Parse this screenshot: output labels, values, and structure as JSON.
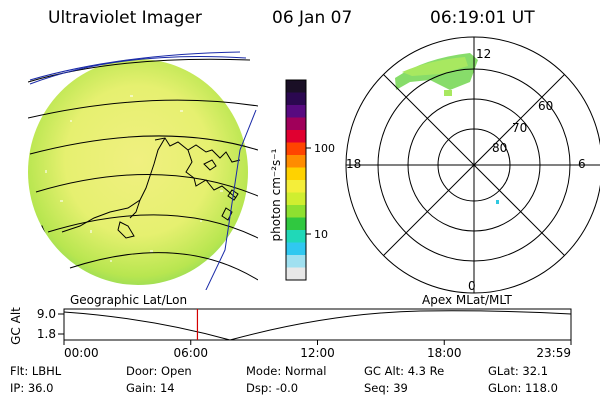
{
  "header": {
    "title": "Ultraviolet Imager",
    "date": "06 Jan 07",
    "time": "06:19:01 UT"
  },
  "colorbar": {
    "unit_label": "photon cm⁻²s⁻¹",
    "ticks": [
      "100",
      "10"
    ],
    "colors": [
      "#1a0f26",
      "#2b0850",
      "#580a80",
      "#a0005a",
      "#e00030",
      "#ff4400",
      "#ff8c00",
      "#ffd200",
      "#f4ee3a",
      "#d0ee30",
      "#8ee030",
      "#30c840",
      "#20d8b8",
      "#30c8f0",
      "#a0e0f0",
      "#e8e8e8"
    ]
  },
  "polar_plot": {
    "mlt_labels": {
      "top": "12",
      "left": "18",
      "right": "6",
      "bottom": "0"
    },
    "lat_labels": [
      "60",
      "70",
      "80"
    ]
  },
  "timeline": {
    "left_title": "Geographic Lat/Lon",
    "right_title": "Apex MLat/MLT",
    "y_axis_label": "GC Alt",
    "y_max": "9.0",
    "y_min": "1.8",
    "time_ticks": [
      "00:00",
      "06:00",
      "12:00",
      "18:00",
      "23:59"
    ],
    "current_time_marker_hour": 6.317,
    "colors": {
      "marker": "#d40000"
    }
  },
  "info_rows": [
    [
      {
        "label": "Flt:",
        "value": "LBHL"
      },
      {
        "label": "Door:",
        "value": "Open"
      },
      {
        "label": "Mode:",
        "value": "Normal"
      },
      {
        "label": "GC Alt:",
        "value": "4.3 Re"
      },
      {
        "label": "GLat:",
        "value": "32.1"
      }
    ],
    [
      {
        "label": "IP:",
        "value": "36.0"
      },
      {
        "label": "Gain:",
        "value": "14"
      },
      {
        "label": "Dsp:",
        "value": "-0.0"
      },
      {
        "label": "Seq:",
        "value": "39"
      },
      {
        "label": "GLon:",
        "value": "118.0"
      }
    ]
  ]
}
